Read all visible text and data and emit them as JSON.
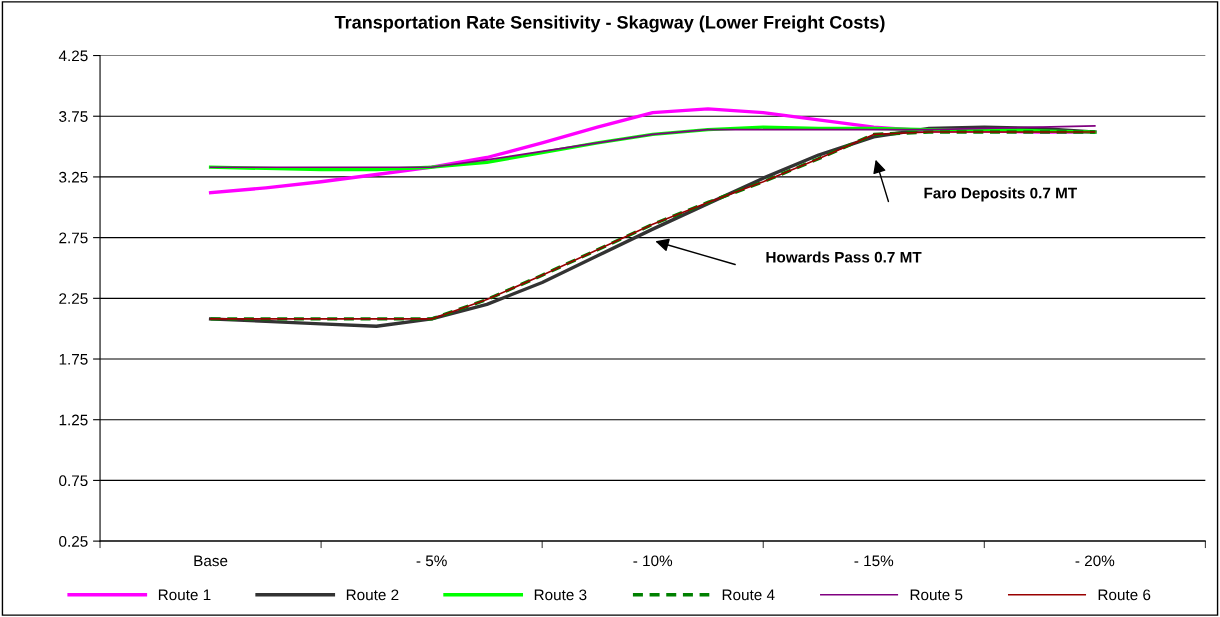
{
  "chart_data": {
    "type": "line",
    "title": "Transportation Rate Sensitivity - Skagway (Lower Freight Costs)",
    "categories": [
      "Base",
      null,
      null,
      null,
      "- 5%",
      null,
      null,
      null,
      "- 10%",
      null,
      null,
      null,
      "- 15%",
      null,
      null,
      null,
      "- 20%"
    ],
    "ylim": [
      0.25,
      4.25
    ],
    "yticks": [
      0.25,
      0.75,
      1.25,
      1.75,
      2.25,
      2.75,
      3.25,
      3.75,
      4.25
    ],
    "grid": "y",
    "legend": "bottom",
    "marker": "none",
    "series": [
      {
        "name": "Route 1",
        "color": "#ff00ff",
        "line_style": "solid",
        "values": [
          3.12,
          3.16,
          3.21,
          3.27,
          3.33,
          3.41,
          3.53,
          3.66,
          3.78,
          3.81,
          3.78,
          3.72,
          3.66,
          3.63,
          3.63,
          3.62,
          3.62
        ]
      },
      {
        "name": "Route 2",
        "color": "#333333",
        "line_style": "solid",
        "values": [
          2.08,
          2.06,
          2.04,
          2.02,
          2.08,
          2.2,
          2.38,
          2.6,
          2.82,
          3.03,
          3.24,
          3.43,
          3.58,
          3.65,
          3.66,
          3.65,
          3.62
        ]
      },
      {
        "name": "Route 3",
        "color": "#00ff00",
        "line_style": "solid",
        "values": [
          3.33,
          3.32,
          3.31,
          3.31,
          3.33,
          3.37,
          3.45,
          3.53,
          3.6,
          3.64,
          3.66,
          3.65,
          3.65,
          3.64,
          3.64,
          3.63,
          3.62
        ]
      },
      {
        "name": "Route 4",
        "color": "#008000",
        "line_style": "dashed",
        "values": [
          2.08,
          2.08,
          2.08,
          2.08,
          2.08,
          2.24,
          2.44,
          2.65,
          2.86,
          3.04,
          3.21,
          3.4,
          3.6,
          3.62,
          3.62,
          3.62,
          3.62
        ]
      },
      {
        "name": "Route 5",
        "color": "#800080",
        "line_style": "solid",
        "values": [
          3.33,
          3.33,
          3.33,
          3.33,
          3.33,
          3.39,
          3.46,
          3.53,
          3.6,
          3.64,
          3.64,
          3.64,
          3.64,
          3.64,
          3.65,
          3.66,
          3.67
        ]
      },
      {
        "name": "Route 6",
        "color": "#990000",
        "line_style": "solid",
        "values": [
          2.08,
          2.08,
          2.08,
          2.08,
          2.08,
          2.24,
          2.44,
          2.65,
          2.86,
          3.04,
          3.21,
          3.4,
          3.6,
          3.62,
          3.62,
          3.62,
          3.62
        ]
      }
    ],
    "annotations": [
      "Faro Deposits 0.7 MT",
      "Howards Pass 0.7 MT"
    ]
  }
}
